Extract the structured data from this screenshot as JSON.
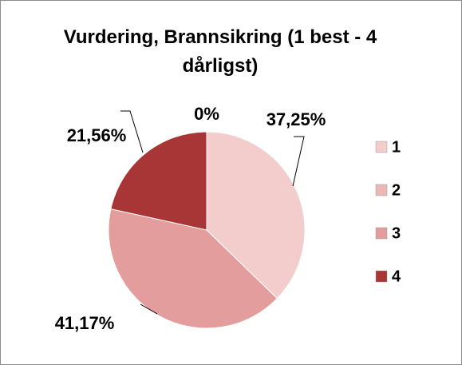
{
  "chart_data": {
    "type": "pie",
    "title": "Vurdering, Brannsikring (1 best - 4 dårligst)",
    "categories": [
      "1",
      "2",
      "3",
      "4"
    ],
    "values": [
      37.25,
      0,
      41.17,
      21.56
    ],
    "value_labels": [
      "37,25%",
      "0%",
      "41,17%",
      "21,56%"
    ],
    "colors": [
      "#f3cccc",
      "#ebb8b8",
      "#e49d9d",
      "#a93636"
    ],
    "legend": "right"
  }
}
